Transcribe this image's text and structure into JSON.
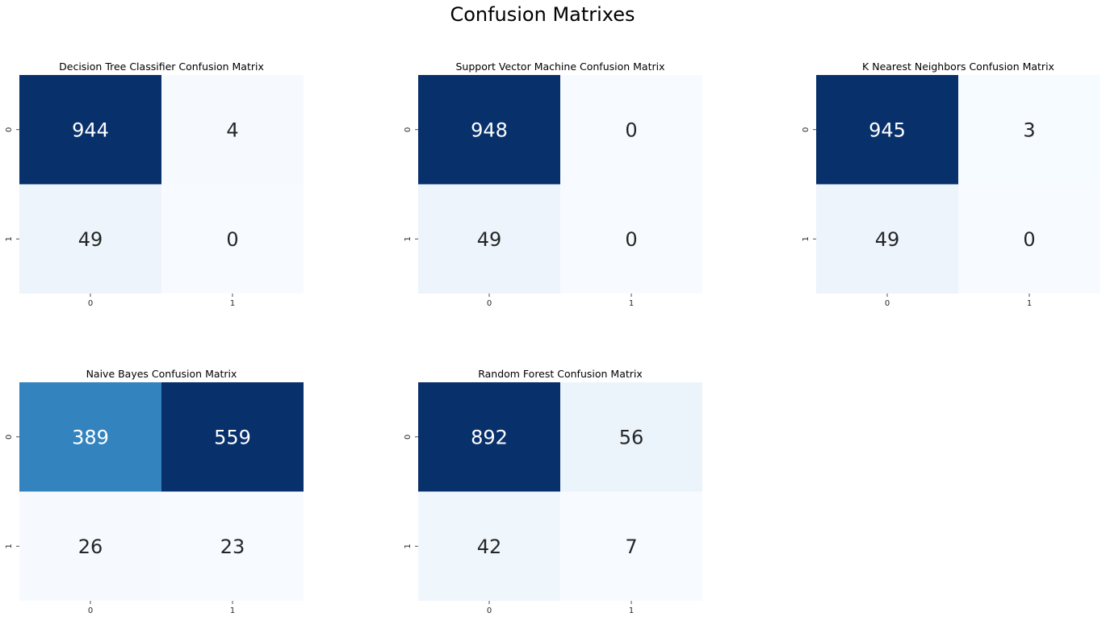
{
  "suptitle": "Confusion Matrixes",
  "chart_data": [
    {
      "type": "heatmap",
      "title": "Decision Tree Classifier Confusion Matrix",
      "xticklabels": [
        "0",
        "1"
      ],
      "yticklabels": [
        "0",
        "1"
      ],
      "values": [
        [
          944,
          4
        ],
        [
          49,
          0
        ]
      ],
      "colormap": "Blues",
      "colorbar": false
    },
    {
      "type": "heatmap",
      "title": "Support Vector Machine Confusion Matrix",
      "xticklabels": [
        "0",
        "1"
      ],
      "yticklabels": [
        "0",
        "1"
      ],
      "values": [
        [
          948,
          0
        ],
        [
          49,
          0
        ]
      ],
      "colormap": "Blues",
      "colorbar": false
    },
    {
      "type": "heatmap",
      "title": "K Nearest Neighbors Confusion Matrix",
      "xticklabels": [
        "0",
        "1"
      ],
      "yticklabels": [
        "0",
        "1"
      ],
      "values": [
        [
          945,
          3
        ],
        [
          49,
          0
        ]
      ],
      "colormap": "Blues",
      "colorbar": false
    },
    {
      "type": "heatmap",
      "title": "Naive Bayes Confusion Matrix",
      "xticklabels": [
        "0",
        "1"
      ],
      "yticklabels": [
        "0",
        "1"
      ],
      "values": [
        [
          389,
          559
        ],
        [
          26,
          23
        ]
      ],
      "colormap": "Blues",
      "colorbar": false
    },
    {
      "type": "heatmap",
      "title": "Random Forest Confusion Matrix",
      "xticklabels": [
        "0",
        "1"
      ],
      "yticklabels": [
        "0",
        "1"
      ],
      "values": [
        [
          892,
          56
        ],
        [
          42,
          7
        ]
      ],
      "colormap": "Blues",
      "colorbar": false
    }
  ]
}
